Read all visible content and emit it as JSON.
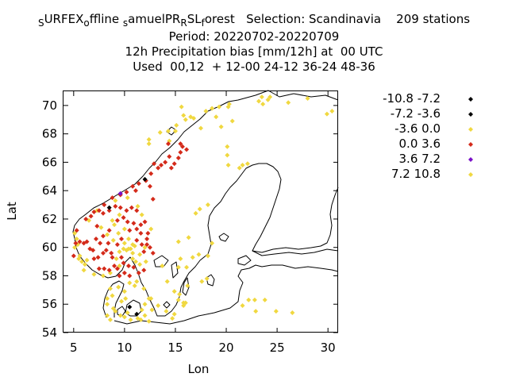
{
  "title": {
    "line1_parts": [
      {
        "text": "S",
        "sub": true
      },
      {
        "text": "URFEX",
        "sub": false
      },
      {
        "text": "o",
        "sub": true
      },
      {
        "text": "ffline ",
        "sub": false
      },
      {
        "text": "s",
        "sub": true
      },
      {
        "text": "amuelPR",
        "sub": false
      },
      {
        "text": "R",
        "sub": true
      },
      {
        "text": "SL",
        "sub": false
      },
      {
        "text": "f",
        "sub": true
      },
      {
        "text": "orest   Selection: Scandinavia    209 stations",
        "sub": false
      }
    ],
    "line2": "Period: 20220702-20220709",
    "line3": "12h Precipitation bias [mm/12h] at  00 UTC",
    "line4": "Used  00,12  + 12-00 24-12 36-24 48-36"
  },
  "chart_data": {
    "type": "scatter",
    "xlabel": "Lon",
    "ylabel": "Lat",
    "xlim": [
      4,
      31
    ],
    "ylim": [
      54,
      71
    ],
    "xticks": [
      5,
      10,
      15,
      20,
      25,
      30
    ],
    "yticks": [
      54,
      56,
      58,
      60,
      62,
      64,
      66,
      68,
      70
    ],
    "legend_position": "right",
    "classes": [
      {
        "name": "-10.8 -7.2",
        "color": "#000000"
      },
      {
        "name": "-7.2 -3.6",
        "color": "#000000"
      },
      {
        "name": "-3.6 0.0",
        "color": "#f0d840"
      },
      {
        "name": "0.0 3.6",
        "color": "#d42a1a"
      },
      {
        "name": "3.6 7.2",
        "color": "#7a10c8"
      },
      {
        "name": "7.2 10.8",
        "color": "#f0d840"
      }
    ],
    "series": [
      {
        "class": 1,
        "points": [
          [
            12.0,
            64.8
          ],
          [
            11.2,
            55.3
          ],
          [
            8.5,
            62.8
          ],
          [
            10.5,
            55.8
          ]
        ]
      },
      {
        "class": 2,
        "points": [
          [
            5.1,
            61.0
          ],
          [
            5.3,
            60.6
          ],
          [
            5.6,
            59.4
          ],
          [
            5.8,
            59.0
          ],
          [
            6.1,
            58.8
          ],
          [
            7.0,
            58.1
          ],
          [
            7.9,
            58.0
          ],
          [
            8.6,
            58.2
          ],
          [
            9.2,
            59.2
          ],
          [
            9.5,
            59.7
          ],
          [
            9.9,
            59.9
          ],
          [
            10.2,
            59.8
          ],
          [
            10.6,
            59.9
          ],
          [
            10.8,
            60.2
          ],
          [
            10.4,
            60.6
          ],
          [
            11.0,
            60.1
          ],
          [
            11.5,
            59.5
          ],
          [
            12.1,
            59.0
          ],
          [
            8.9,
            60.5
          ],
          [
            8.3,
            60.9
          ],
          [
            10.0,
            61.3
          ],
          [
            9.4,
            61.0
          ],
          [
            7.7,
            61.4
          ],
          [
            9.0,
            61.6
          ],
          [
            11.7,
            62.3
          ],
          [
            11.3,
            62.9
          ],
          [
            10.3,
            63.5
          ],
          [
            9.1,
            63.3
          ],
          [
            12.4,
            67.6
          ],
          [
            13.5,
            68.1
          ],
          [
            14.3,
            68.2
          ],
          [
            15.1,
            68.6
          ],
          [
            17.5,
            68.4
          ],
          [
            16.5,
            69.2
          ],
          [
            18.0,
            69.6
          ],
          [
            15.6,
            69.9
          ],
          [
            19.0,
            69.2
          ],
          [
            19.3,
            69.9
          ],
          [
            20.2,
            69.9
          ],
          [
            23.2,
            70.3
          ],
          [
            23.6,
            70.1
          ],
          [
            24.1,
            70.4
          ],
          [
            20.1,
            66.5
          ],
          [
            20.2,
            65.8
          ],
          [
            21.6,
            65.8
          ],
          [
            16.7,
            59.3
          ],
          [
            15.3,
            58.6
          ],
          [
            14.2,
            57.6
          ],
          [
            15.4,
            56.7
          ],
          [
            15.8,
            55.9
          ],
          [
            16.0,
            56.1
          ],
          [
            13.3,
            55.9
          ],
          [
            12.7,
            55.6
          ],
          [
            10.0,
            56.9
          ],
          [
            9.7,
            56.2
          ],
          [
            8.8,
            56.6
          ],
          [
            8.3,
            56.0
          ],
          [
            9.1,
            55.5
          ],
          [
            10.1,
            56.4
          ],
          [
            11.0,
            57.3
          ],
          [
            11.9,
            57.1
          ],
          [
            12.6,
            56.4
          ],
          [
            14.9,
            55.3
          ],
          [
            14.7,
            55.0
          ],
          [
            8.3,
            55.2
          ],
          [
            8.6,
            54.9
          ],
          [
            22.2,
            56.3
          ],
          [
            22.8,
            56.3
          ],
          [
            23.8,
            56.3
          ],
          [
            21.6,
            55.9
          ],
          [
            26.5,
            55.4
          ],
          [
            24.9,
            55.5
          ],
          [
            22.9,
            55.5
          ],
          [
            10.3,
            55.4
          ],
          [
            12.0,
            55.2
          ],
          [
            11.7,
            55.6
          ],
          [
            10.8,
            59.6
          ],
          [
            9.5,
            58.7
          ],
          [
            6.5,
            61.9
          ],
          [
            7.3,
            62.6
          ]
        ]
      },
      {
        "class": 3,
        "points": [
          [
            5.2,
            60.3
          ],
          [
            5.0,
            59.4
          ],
          [
            5.3,
            61.2
          ],
          [
            5.6,
            60.4
          ],
          [
            6.0,
            60.3
          ],
          [
            6.3,
            60.4
          ],
          [
            6.6,
            59.9
          ],
          [
            6.9,
            59.8
          ],
          [
            7.0,
            59.2
          ],
          [
            7.2,
            60.6
          ],
          [
            7.5,
            58.5
          ],
          [
            7.4,
            59.3
          ],
          [
            7.9,
            59.6
          ],
          [
            8.0,
            58.5
          ],
          [
            7.6,
            60.3
          ],
          [
            6.2,
            62.0
          ],
          [
            6.7,
            62.2
          ],
          [
            7.0,
            62.5
          ],
          [
            7.5,
            62.6
          ],
          [
            8.0,
            63.0
          ],
          [
            8.5,
            62.6
          ],
          [
            7.9,
            62.4
          ],
          [
            7.3,
            61.5
          ],
          [
            8.5,
            61.2
          ],
          [
            7.9,
            60.8
          ],
          [
            8.4,
            60.3
          ],
          [
            8.2,
            59.8
          ],
          [
            8.7,
            59.6
          ],
          [
            8.8,
            59.3
          ],
          [
            9.0,
            58.7
          ],
          [
            8.5,
            58.4
          ],
          [
            9.3,
            58.5
          ],
          [
            9.7,
            59.3
          ],
          [
            9.9,
            58.9
          ],
          [
            10.4,
            58.7
          ],
          [
            10.0,
            58.2
          ],
          [
            9.5,
            58.0
          ],
          [
            10.5,
            58.0
          ],
          [
            10.9,
            58.6
          ],
          [
            11.4,
            58.2
          ],
          [
            11.9,
            58.4
          ],
          [
            9.3,
            60.2
          ],
          [
            9.7,
            60.6
          ],
          [
            9.3,
            61.9
          ],
          [
            9.9,
            62.1
          ],
          [
            10.3,
            61.8
          ],
          [
            10.9,
            61.7
          ],
          [
            10.5,
            61.2
          ],
          [
            11.2,
            61.3
          ],
          [
            11.6,
            61.0
          ],
          [
            11.2,
            60.5
          ],
          [
            11.7,
            60.2
          ],
          [
            12.2,
            60.2
          ],
          [
            12.2,
            60.6
          ],
          [
            12.5,
            60.0
          ],
          [
            12.8,
            59.6
          ],
          [
            11.9,
            59.7
          ],
          [
            12.3,
            61.0
          ],
          [
            11.6,
            61.6
          ],
          [
            12.0,
            61.8
          ],
          [
            11.2,
            62.6
          ],
          [
            10.7,
            62.8
          ],
          [
            10.2,
            62.6
          ],
          [
            9.6,
            62.8
          ],
          [
            9.1,
            62.9
          ],
          [
            8.8,
            63.5
          ],
          [
            9.6,
            63.7
          ],
          [
            10.2,
            63.9
          ],
          [
            11.1,
            64.0
          ],
          [
            10.8,
            64.3
          ],
          [
            11.4,
            64.5
          ],
          [
            12.5,
            64.3
          ],
          [
            12.1,
            64.7
          ],
          [
            12.6,
            65.2
          ],
          [
            13.3,
            65.6
          ],
          [
            13.6,
            65.8
          ],
          [
            14.0,
            66.0
          ],
          [
            14.4,
            66.4
          ],
          [
            14.6,
            65.6
          ],
          [
            14.9,
            65.9
          ],
          [
            15.3,
            66.3
          ],
          [
            15.5,
            66.7
          ],
          [
            16.1,
            66.9
          ],
          [
            15.7,
            67.1
          ],
          [
            15.5,
            67.3
          ],
          [
            14.3,
            67.3
          ],
          [
            12.9,
            65.9
          ],
          [
            12.8,
            63.4
          ]
        ]
      },
      {
        "class": 4,
        "points": [
          [
            9.6,
            63.8
          ]
        ]
      },
      {
        "class": 5,
        "points": [
          [
            5.1,
            60.0
          ],
          [
            5.4,
            60.2
          ],
          [
            5.5,
            59.2
          ],
          [
            6.0,
            58.4
          ],
          [
            6.3,
            59.1
          ],
          [
            8.8,
            61.9
          ],
          [
            9.5,
            62.3
          ],
          [
            10.0,
            60.3
          ],
          [
            10.4,
            59.9
          ],
          [
            10.8,
            59.2
          ],
          [
            11.1,
            59.0
          ],
          [
            11.5,
            58.8
          ],
          [
            12.0,
            60.0
          ],
          [
            12.6,
            61.3
          ],
          [
            12.4,
            67.3
          ],
          [
            14.4,
            67.5
          ],
          [
            15.0,
            68.2
          ],
          [
            16.0,
            69.0
          ],
          [
            15.8,
            69.3
          ],
          [
            16.8,
            69.1
          ],
          [
            18.6,
            69.8
          ],
          [
            20.3,
            70.1
          ],
          [
            23.5,
            70.6
          ],
          [
            24.3,
            70.6
          ],
          [
            26.1,
            70.2
          ],
          [
            29.9,
            69.4
          ],
          [
            30.4,
            69.6
          ],
          [
            28.0,
            70.5
          ],
          [
            20.6,
            68.9
          ],
          [
            19.5,
            68.5
          ],
          [
            20.1,
            67.1
          ],
          [
            21.3,
            65.6
          ],
          [
            22.1,
            65.9
          ],
          [
            15.8,
            56.1
          ],
          [
            16.2,
            57.3
          ],
          [
            15.3,
            56.3
          ],
          [
            14.1,
            55.5
          ],
          [
            12.4,
            56.4
          ],
          [
            12.0,
            56.0
          ],
          [
            10.0,
            55.1
          ],
          [
            9.6,
            55.2
          ],
          [
            10.6,
            54.9
          ],
          [
            11.3,
            55.0
          ],
          [
            11.6,
            54.9
          ],
          [
            12.4,
            54.8
          ],
          [
            8.9,
            55.7
          ],
          [
            8.3,
            56.4
          ],
          [
            8.6,
            57.1
          ],
          [
            9.4,
            57.2
          ],
          [
            10.5,
            57.5
          ],
          [
            11.2,
            57.6
          ],
          [
            13.7,
            58.7
          ],
          [
            15.5,
            59.2
          ],
          [
            16.1,
            58.6
          ],
          [
            17.3,
            59.5
          ],
          [
            18.2,
            59.4
          ],
          [
            18.6,
            60.3
          ],
          [
            17.0,
            62.4
          ],
          [
            17.4,
            62.7
          ],
          [
            18.2,
            63.0
          ],
          [
            15.3,
            60.4
          ],
          [
            16.3,
            60.7
          ],
          [
            17.6,
            57.6
          ],
          [
            18.1,
            57.8
          ],
          [
            14.9,
            56.9
          ]
        ]
      }
    ]
  }
}
